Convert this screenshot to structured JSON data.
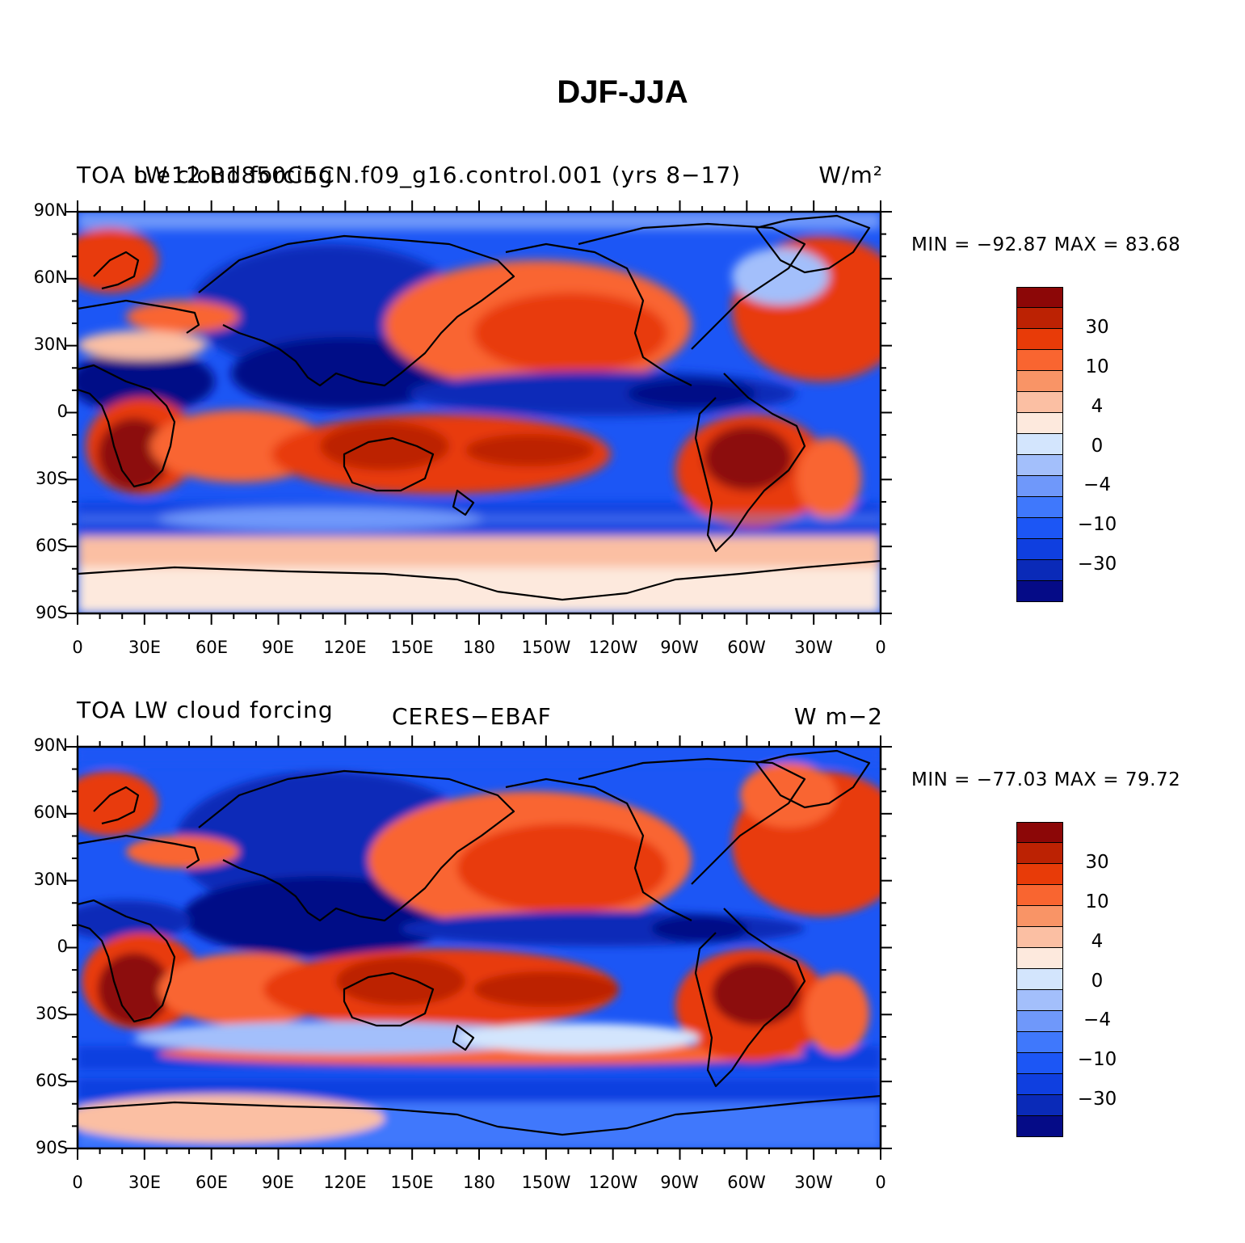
{
  "title": "DJF-JJA",
  "palette": [
    "#050b87",
    "#0a2ab8",
    "#0f3fe0",
    "#1c56f5",
    "#3f78fc",
    "#6f98fa",
    "#a3bffb",
    "#d3e5fd",
    "#fde9dd",
    "#fbbfa3",
    "#f99466",
    "#f96530",
    "#e83b08",
    "#bc2203",
    "#8c0707"
  ],
  "colorbar_labels": [
    "30",
    "10",
    "4",
    "0",
    "−4",
    "−10",
    "−30"
  ],
  "map_axes": {
    "y_labels": [
      "90N",
      "60N",
      "30N",
      "0",
      "30S",
      "60S",
      "90S"
    ],
    "x_labels": [
      "0",
      "30E",
      "60E",
      "90E",
      "120E",
      "150E",
      "180",
      "150W",
      "120W",
      "90W",
      "60W",
      "30W",
      "0"
    ]
  },
  "panels": [
    {
      "left_title": "TOA LW cloud forcing",
      "center_title": "b.e12.B1850C5CN.f09_g16.control.001 (yrs 8−17)",
      "units": "W/m²",
      "min": "MIN = −92.87",
      "max": "MAX =  83.68"
    },
    {
      "left_title": "TOA LW cloud forcing",
      "center_title": "CERES−EBAF",
      "units": "W m−2",
      "min": "MIN = −77.03",
      "max": "MAX =  79.72"
    }
  ]
}
